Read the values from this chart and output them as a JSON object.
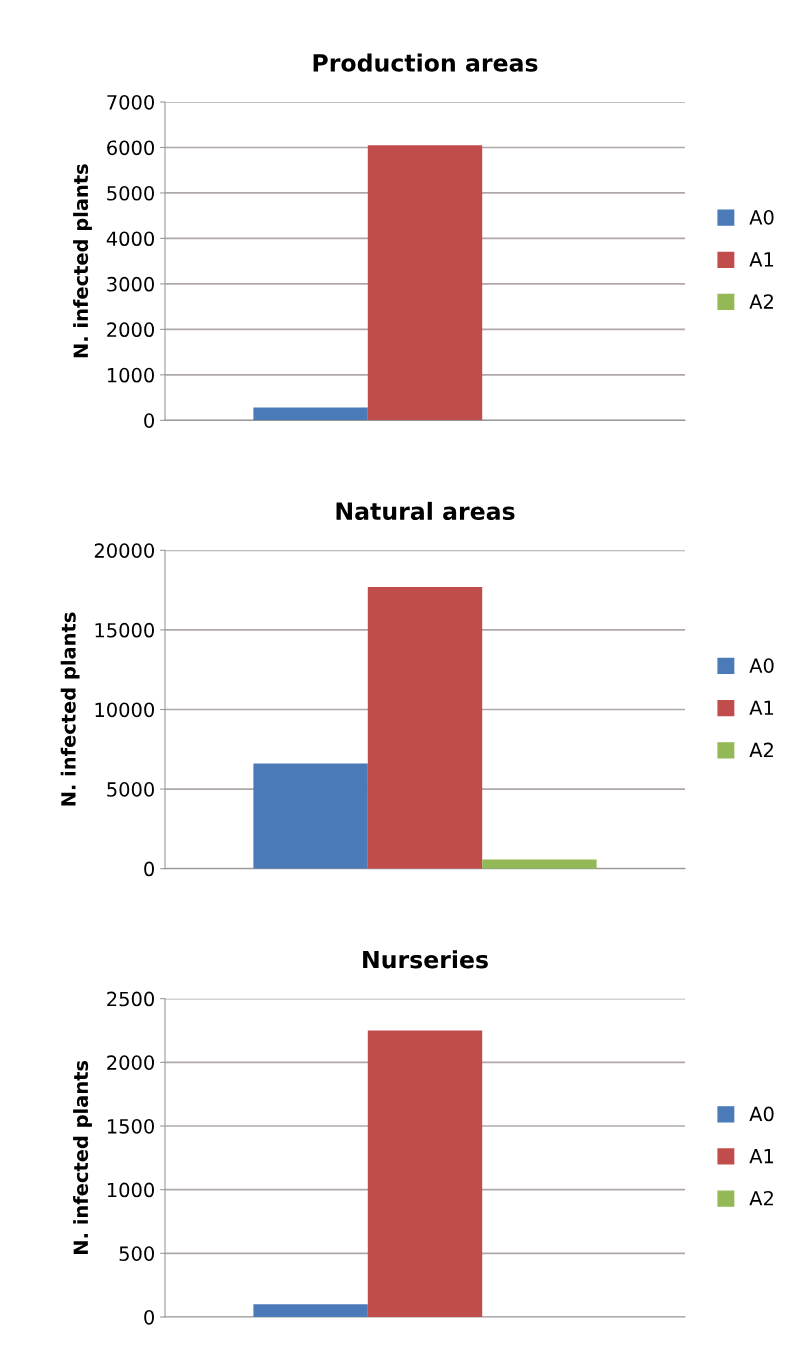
{
  "chart_data": [
    {
      "type": "bar",
      "title": "Production areas",
      "ylabel": "N. infected plants",
      "categories": [
        null
      ],
      "series": [
        {
          "name": "A0",
          "color": "#4a7ab8",
          "values": [
            280
          ]
        },
        {
          "name": "A1",
          "color": "#c04d4b",
          "values": [
            6050
          ]
        },
        {
          "name": "A2",
          "color": "#93b956",
          "values": [
            0
          ]
        }
      ],
      "ylim": [
        0,
        7000
      ],
      "yticks": [
        0,
        1000,
        2000,
        3000,
        4000,
        5000,
        6000,
        7000
      ],
      "grid": "y",
      "legend": "right"
    },
    {
      "type": "bar",
      "title": "Natural areas",
      "ylabel": "N. infected plants",
      "categories": [
        null
      ],
      "series": [
        {
          "name": "A0",
          "color": "#4a7ab8",
          "values": [
            6600
          ]
        },
        {
          "name": "A1",
          "color": "#c04d4b",
          "values": [
            17700
          ]
        },
        {
          "name": "A2",
          "color": "#93b956",
          "values": [
            570
          ]
        }
      ],
      "ylim": [
        0,
        20000
      ],
      "yticks": [
        0,
        5000,
        10000,
        15000,
        20000
      ],
      "grid": "y",
      "legend": "right"
    },
    {
      "type": "bar",
      "title": "Nurseries",
      "ylabel": "N. infected plants",
      "categories": [
        null
      ],
      "series": [
        {
          "name": "A0",
          "color": "#4a7ab8",
          "values": [
            100
          ]
        },
        {
          "name": "A1",
          "color": "#c04d4b",
          "values": [
            2250
          ]
        },
        {
          "name": "A2",
          "color": "#93b956",
          "values": [
            0
          ]
        }
      ],
      "ylim": [
        0,
        2500
      ],
      "yticks": [
        0,
        500,
        1000,
        1500,
        2000,
        2500
      ],
      "grid": "y",
      "legend": "right"
    }
  ]
}
